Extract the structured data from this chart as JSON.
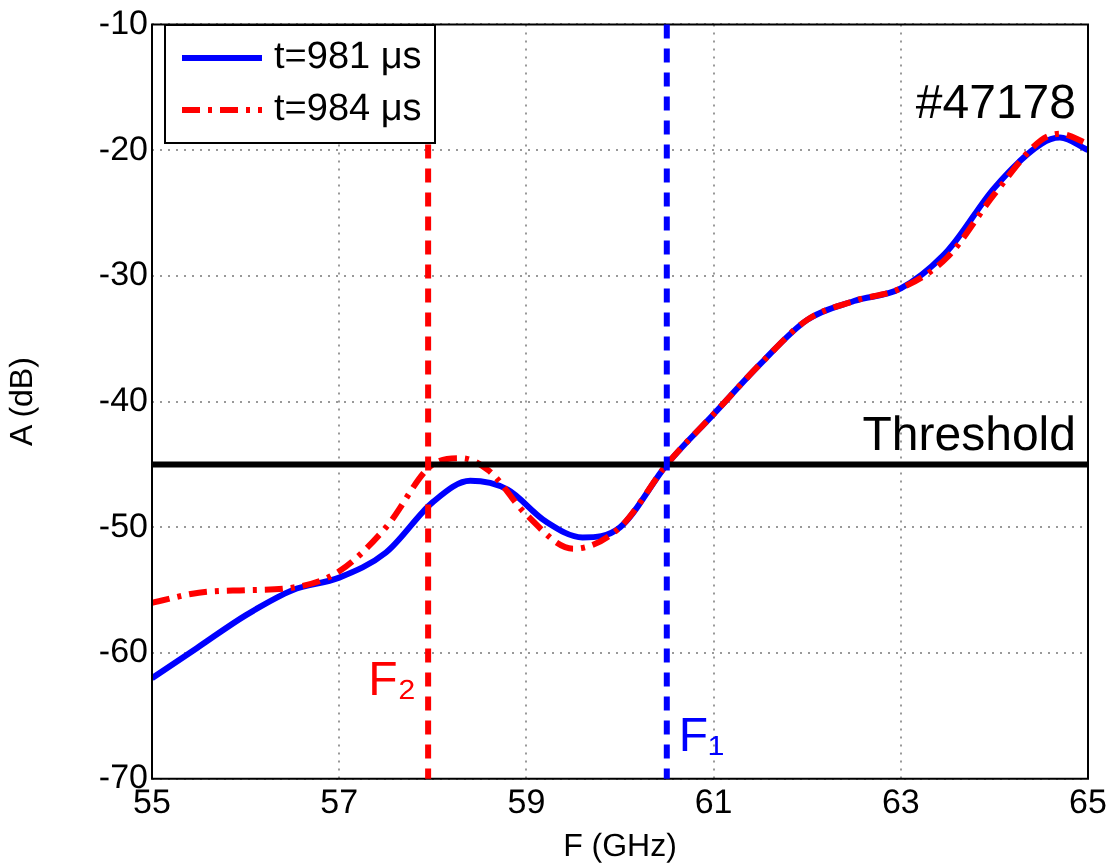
{
  "chart_data": {
    "type": "line",
    "xlabel": "F (GHz)",
    "ylabel": "A (dB)",
    "xlim": [
      55,
      65
    ],
    "xticks": [
      55,
      57,
      59,
      61,
      63,
      65
    ],
    "ylim": [
      -70,
      -10
    ],
    "yticks": [
      -70,
      -60,
      -50,
      -40,
      -30,
      -20,
      -10
    ],
    "grid": true,
    "legend": "top left",
    "marker": "none",
    "series": [
      {
        "name": "t=981 μs",
        "color": "#0000ff",
        "line_style": "solid",
        "x": [
          55,
          55.5,
          56,
          56.5,
          57,
          57.5,
          58,
          58.4,
          58.8,
          59.2,
          59.6,
          60,
          60.5,
          61,
          61.5,
          62,
          62.5,
          63,
          63.5,
          64,
          64.5,
          64.7,
          65
        ],
        "values": [
          -62,
          -59.5,
          -57,
          -55,
          -54,
          -52,
          -48,
          -46.3,
          -47,
          -49.5,
          -50.8,
          -50,
          -45,
          -41,
          -37,
          -33.5,
          -32,
          -31,
          -28,
          -23,
          -19.5,
          -19,
          -20
        ]
      },
      {
        "name": "t=984 μs",
        "color": "#ff0000",
        "line_style": "dashed",
        "x": [
          55,
          55.5,
          56,
          56.5,
          57,
          57.5,
          58,
          58.3,
          58.6,
          59,
          59.5,
          60,
          60.5,
          61,
          61.5,
          62,
          62.5,
          63,
          63.5,
          64,
          64.5,
          64.7,
          65
        ],
        "values": [
          -56,
          -55.2,
          -55,
          -54.8,
          -53.5,
          -50,
          -45,
          -44.5,
          -45.5,
          -49,
          -51.7,
          -50,
          -45,
          -41,
          -37,
          -33.5,
          -32,
          -31,
          -28.5,
          -23.5,
          -19.2,
          -18.7,
          -19.5
        ]
      }
    ],
    "ref_lines": [
      {
        "axis": "y",
        "value": -45,
        "label": "Threshold",
        "color": "#000000",
        "line_style": "solid"
      },
      {
        "axis": "x",
        "value": 57.95,
        "label": "F₂",
        "color": "#ff0000",
        "line_style": "dashed"
      },
      {
        "axis": "x",
        "value": 60.5,
        "label": "F₁",
        "color": "#0000ff",
        "line_style": "dashed"
      }
    ],
    "annotations": [
      "#47178"
    ]
  }
}
